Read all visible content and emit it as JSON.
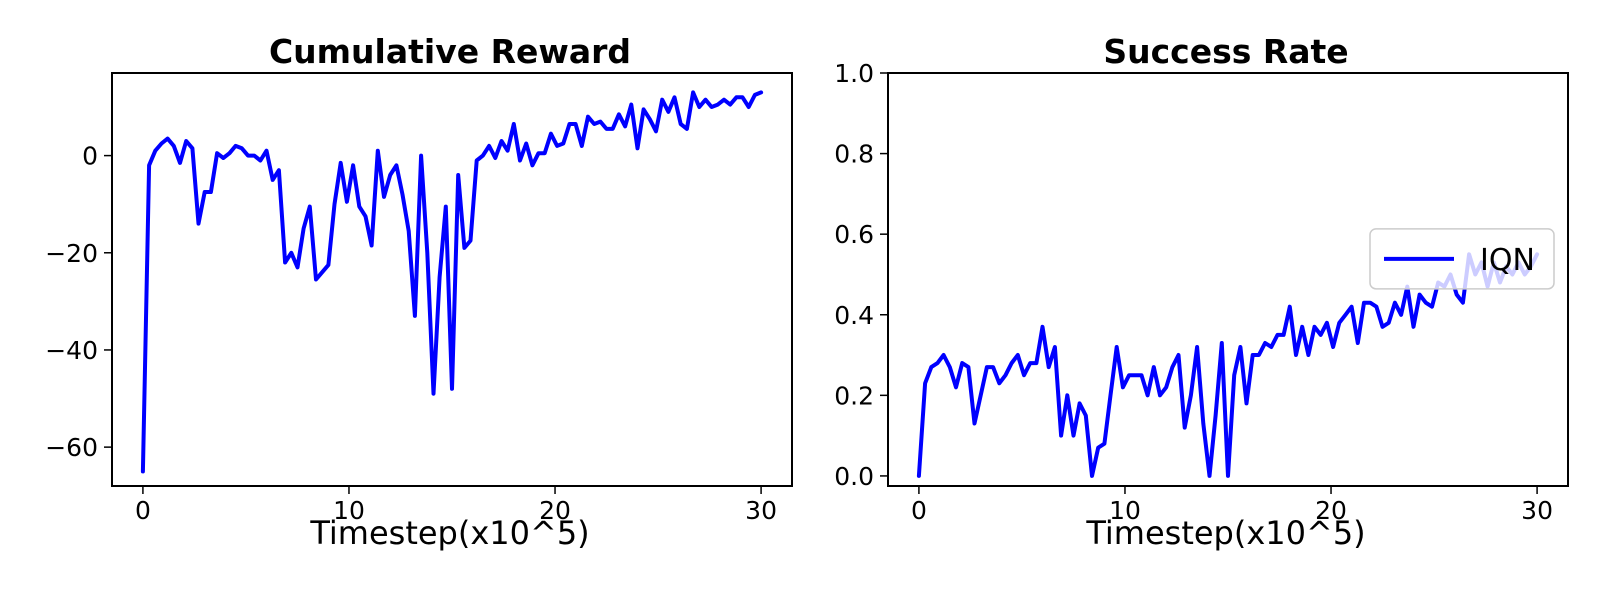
{
  "chart_data": [
    {
      "type": "line",
      "title": "Cumulative Reward",
      "xlabel": "Timestep(x10^5)",
      "ylabel": "",
      "xlim": [
        -1.5,
        31.5
      ],
      "ylim": [
        -68,
        17
      ],
      "xticks": [
        0,
        10,
        20,
        30
      ],
      "yticks": [
        -60,
        -40,
        -20,
        0
      ],
      "grid": false,
      "series": [
        {
          "name": "IQN",
          "color": "#0000ff",
          "x": [
            0.0,
            0.3,
            0.6,
            0.9,
            1.2,
            1.5,
            1.8,
            2.1,
            2.4,
            2.7,
            3.0,
            3.3,
            3.6,
            3.9,
            4.2,
            4.5,
            4.8,
            5.1,
            5.4,
            5.7,
            6.0,
            6.3,
            6.6,
            6.9,
            7.2,
            7.5,
            7.8,
            8.1,
            8.4,
            8.7,
            9.0,
            9.3,
            9.6,
            9.9,
            10.2,
            10.5,
            10.8,
            11.1,
            11.4,
            11.7,
            12.0,
            12.3,
            12.6,
            12.9,
            13.2,
            13.5,
            13.8,
            14.1,
            14.4,
            14.7,
            15.0,
            15.3,
            15.6,
            15.9,
            16.2,
            16.5,
            16.8,
            17.1,
            17.4,
            17.7,
            18.0,
            18.3,
            18.6,
            18.9,
            19.2,
            19.5,
            19.8,
            20.1,
            20.4,
            20.7,
            21.0,
            21.3,
            21.6,
            21.9,
            22.2,
            22.5,
            22.8,
            23.1,
            23.4,
            23.7,
            24.0,
            24.3,
            24.6,
            24.9,
            25.2,
            25.5,
            25.8,
            26.1,
            26.4,
            26.7,
            27.0,
            27.3,
            27.6,
            27.9,
            28.2,
            28.5,
            28.8,
            29.1,
            29.4,
            29.7,
            30.0
          ],
          "y": [
            -65,
            -2,
            1,
            2.5,
            3.5,
            2,
            -1.5,
            3,
            1.5,
            -14,
            -7.5,
            -7.5,
            0.5,
            -0.5,
            0.5,
            2,
            1.5,
            0,
            0,
            -1,
            1,
            -5,
            -3,
            -22,
            -20,
            -23,
            -15,
            -10.5,
            -25.5,
            -24,
            -22.5,
            -10,
            -1.5,
            -9.5,
            -2,
            -10.5,
            -12.5,
            -18.5,
            1,
            -8.5,
            -4,
            -2,
            -8,
            -15.5,
            -33,
            0,
            -20,
            -49,
            -25,
            -10.5,
            -48,
            -4,
            -19,
            -17.5,
            -1,
            0,
            2,
            -0.5,
            3,
            1,
            6.5,
            -1,
            2.5,
            -2,
            0.5,
            0.5,
            4.5,
            2,
            2.5,
            6.5,
            6.5,
            2,
            8,
            6.5,
            7,
            5.5,
            5.5,
            8.5,
            6,
            10.5,
            1.5,
            9.5,
            7.5,
            5,
            11.5,
            9,
            12,
            6.5,
            5.5,
            13,
            10,
            11.5,
            10,
            10.5,
            11.5,
            10.5,
            12,
            12,
            10,
            12.5,
            13
          ]
        }
      ]
    },
    {
      "type": "line",
      "title": "Success Rate",
      "xlabel": "Timestep(x10^5)",
      "ylabel": "",
      "xlim": [
        -1.5,
        31.5
      ],
      "ylim": [
        -0.025,
        1.0
      ],
      "xticks": [
        0,
        10,
        20,
        30
      ],
      "yticks": [
        0.0,
        0.2,
        0.4,
        0.6,
        0.8,
        1.0
      ],
      "grid": false,
      "legend": {
        "placement": "center-right",
        "entries": [
          {
            "label": "IQN",
            "color": "#0000ff"
          }
        ]
      },
      "series": [
        {
          "name": "IQN",
          "color": "#0000ff",
          "x": [
            0.0,
            0.3,
            0.6,
            0.9,
            1.2,
            1.5,
            1.8,
            2.1,
            2.4,
            2.7,
            3.0,
            3.3,
            3.6,
            3.9,
            4.2,
            4.5,
            4.8,
            5.1,
            5.4,
            5.7,
            6.0,
            6.3,
            6.6,
            6.9,
            7.2,
            7.5,
            7.8,
            8.1,
            8.4,
            8.7,
            9.0,
            9.3,
            9.6,
            9.9,
            10.2,
            10.5,
            10.8,
            11.1,
            11.4,
            11.7,
            12.0,
            12.3,
            12.6,
            12.9,
            13.2,
            13.5,
            13.8,
            14.1,
            14.4,
            14.7,
            15.0,
            15.3,
            15.6,
            15.9,
            16.2,
            16.5,
            16.8,
            17.1,
            17.4,
            17.7,
            18.0,
            18.3,
            18.6,
            18.9,
            19.2,
            19.5,
            19.8,
            20.1,
            20.4,
            20.7,
            21.0,
            21.3,
            21.6,
            21.9,
            22.2,
            22.5,
            22.8,
            23.1,
            23.4,
            23.7,
            24.0,
            24.3,
            24.6,
            24.9,
            25.2,
            25.5,
            25.8,
            26.1,
            26.4,
            26.7,
            27.0,
            27.3,
            27.6,
            27.9,
            28.2,
            28.5,
            28.8,
            29.1,
            29.4,
            29.7,
            30.0
          ],
          "y": [
            0.0,
            0.23,
            0.27,
            0.28,
            0.3,
            0.27,
            0.22,
            0.28,
            0.27,
            0.13,
            0.2,
            0.27,
            0.27,
            0.23,
            0.25,
            0.28,
            0.3,
            0.25,
            0.28,
            0.28,
            0.37,
            0.27,
            0.32,
            0.1,
            0.2,
            0.1,
            0.18,
            0.15,
            0.0,
            0.07,
            0.08,
            0.2,
            0.32,
            0.22,
            0.25,
            0.25,
            0.25,
            0.2,
            0.27,
            0.2,
            0.22,
            0.27,
            0.3,
            0.12,
            0.2,
            0.32,
            0.13,
            0.0,
            0.15,
            0.33,
            0.0,
            0.25,
            0.32,
            0.18,
            0.3,
            0.3,
            0.33,
            0.32,
            0.35,
            0.35,
            0.42,
            0.3,
            0.37,
            0.3,
            0.37,
            0.35,
            0.38,
            0.32,
            0.38,
            0.4,
            0.42,
            0.33,
            0.43,
            0.43,
            0.42,
            0.37,
            0.38,
            0.43,
            0.4,
            0.47,
            0.37,
            0.45,
            0.43,
            0.42,
            0.48,
            0.47,
            0.5,
            0.45,
            0.43,
            0.55,
            0.5,
            0.53,
            0.47,
            0.53,
            0.48,
            0.52,
            0.5,
            0.53,
            0.5,
            0.52,
            0.55
          ]
        }
      ]
    }
  ]
}
